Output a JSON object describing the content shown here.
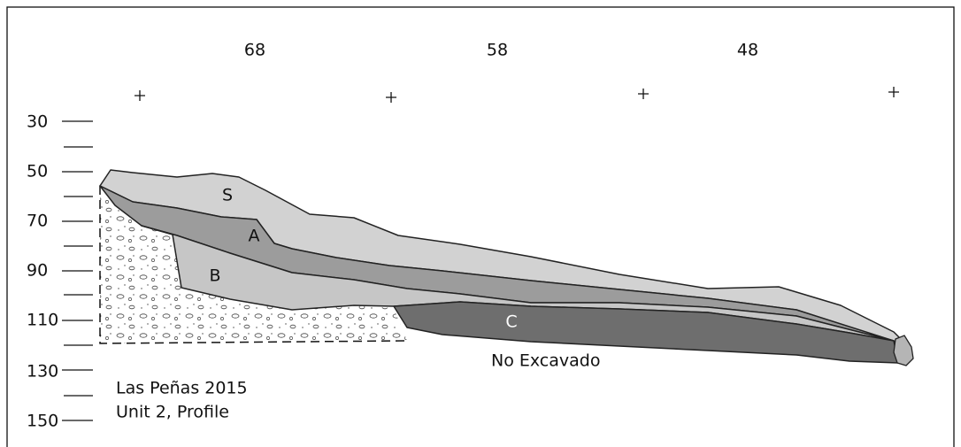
{
  "top_labels": [
    "68",
    "58",
    "48"
  ],
  "depth_labels": [
    "30",
    "50",
    "70",
    "90",
    "110",
    "130",
    "150"
  ],
  "layers": {
    "s": "S",
    "a": "A",
    "b": "B",
    "c": "C"
  },
  "unexcavated": "No Excavado",
  "caption": [
    "Las Peñas 2015",
    "Unit 2, Profile"
  ]
}
